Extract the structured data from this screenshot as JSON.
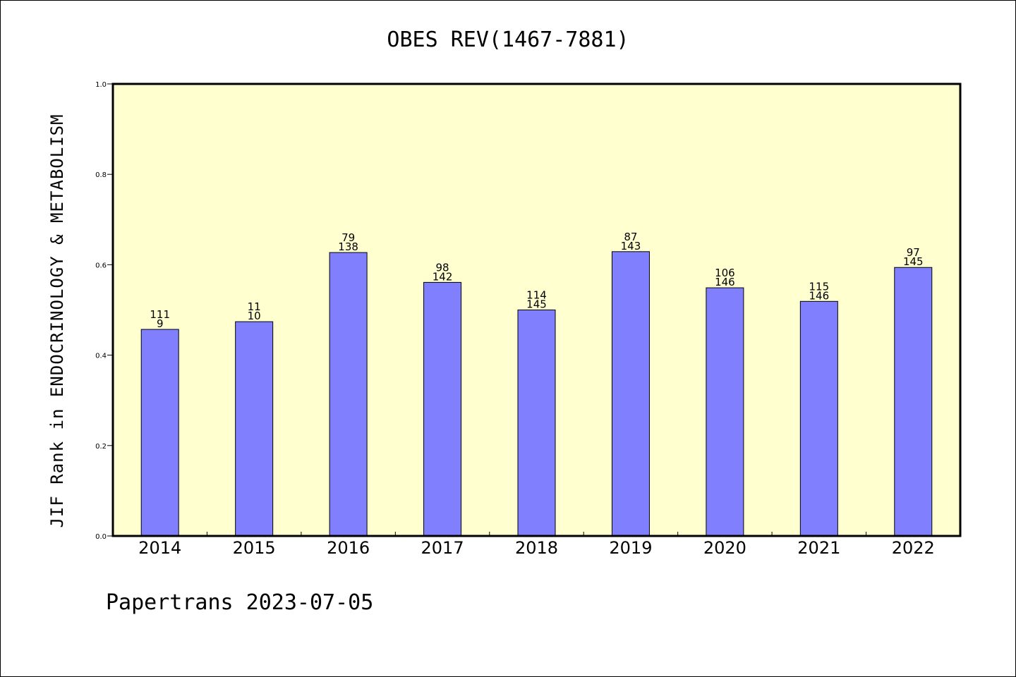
{
  "chart_data": {
    "type": "bar",
    "title": "OBES REV(1467-7881)",
    "xlabel": "",
    "ylabel": "JIF Rank in ENDOCRINOLOGY & METABOLISM",
    "ylim": [
      0,
      1.0
    ],
    "yticks": [
      "0.0",
      "0.2",
      "0.4",
      "0.6",
      "0.8",
      "1.0"
    ],
    "categories": [
      "2014",
      "2015",
      "2016",
      "2017",
      "2018",
      "2019",
      "2020",
      "2021",
      "2022"
    ],
    "values": [
      0.457,
      0.474,
      0.627,
      0.561,
      0.5,
      0.629,
      0.549,
      0.519,
      0.594
    ],
    "labels_top": [
      "111",
      "11",
      "79",
      "98",
      "114",
      "87",
      "106",
      "115",
      "97"
    ],
    "labels_bottom": [
      "9",
      "10",
      "138",
      "142",
      "145",
      "143",
      "146",
      "146",
      "145"
    ],
    "grid": false,
    "colors": {
      "plot_background": "#ffffd0",
      "bar_fill": "#8080ff",
      "bar_stroke": "#000000"
    }
  },
  "footer": "Papertrans 2023-07-05"
}
